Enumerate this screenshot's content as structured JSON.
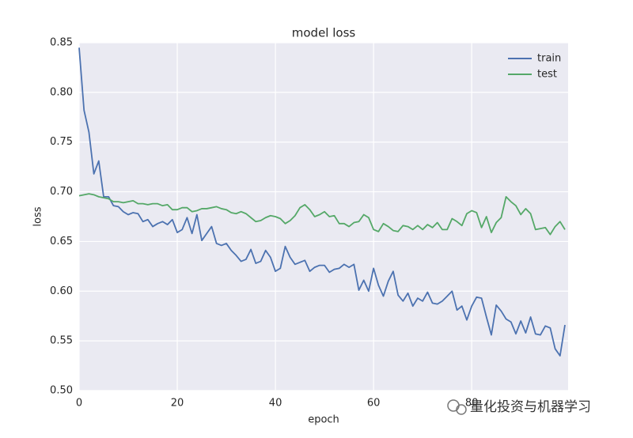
{
  "chart_data": {
    "type": "line",
    "title": "model loss",
    "xlabel": "epoch",
    "ylabel": "loss",
    "x": [
      0,
      1,
      2,
      3,
      4,
      5,
      6,
      7,
      8,
      9,
      10,
      11,
      12,
      13,
      14,
      15,
      16,
      17,
      18,
      19,
      20,
      21,
      22,
      23,
      24,
      25,
      26,
      27,
      28,
      29,
      30,
      31,
      32,
      33,
      34,
      35,
      36,
      37,
      38,
      39,
      40,
      41,
      42,
      43,
      44,
      45,
      46,
      47,
      48,
      49,
      50,
      51,
      52,
      53,
      54,
      55,
      56,
      57,
      58,
      59,
      60,
      61,
      62,
      63,
      64,
      65,
      66,
      67,
      68,
      69,
      70,
      71,
      72,
      73,
      74,
      75,
      76,
      77,
      78,
      79,
      80,
      81,
      82,
      83,
      84,
      85,
      86,
      87,
      88,
      89,
      90,
      91,
      92,
      93,
      94,
      95,
      96,
      97,
      98,
      99
    ],
    "series": [
      {
        "name": "train",
        "color": "#4c72b0",
        "values": [
          0.845,
          0.782,
          0.76,
          0.718,
          0.731,
          0.695,
          0.695,
          0.686,
          0.685,
          0.68,
          0.677,
          0.679,
          0.678,
          0.67,
          0.672,
          0.665,
          0.668,
          0.67,
          0.667,
          0.672,
          0.659,
          0.662,
          0.674,
          0.658,
          0.677,
          0.651,
          0.658,
          0.665,
          0.648,
          0.646,
          0.648,
          0.641,
          0.636,
          0.63,
          0.632,
          0.642,
          0.628,
          0.63,
          0.641,
          0.634,
          0.62,
          0.623,
          0.645,
          0.634,
          0.627,
          0.629,
          0.631,
          0.62,
          0.624,
          0.626,
          0.626,
          0.619,
          0.622,
          0.623,
          0.627,
          0.624,
          0.627,
          0.601,
          0.611,
          0.6,
          0.623,
          0.606,
          0.595,
          0.61,
          0.62,
          0.596,
          0.59,
          0.598,
          0.585,
          0.593,
          0.59,
          0.599,
          0.588,
          0.587,
          0.59,
          0.595,
          0.6,
          0.581,
          0.585,
          0.571,
          0.585,
          0.594,
          0.593,
          0.574,
          0.556,
          0.586,
          0.58,
          0.572,
          0.569,
          0.557,
          0.57,
          0.558,
          0.574,
          0.557,
          0.556,
          0.565,
          0.563,
          0.542,
          0.535,
          0.566
        ]
      },
      {
        "name": "test",
        "color": "#55a868",
        "values": [
          0.696,
          0.697,
          0.698,
          0.697,
          0.695,
          0.694,
          0.693,
          0.69,
          0.69,
          0.689,
          0.69,
          0.691,
          0.688,
          0.688,
          0.687,
          0.688,
          0.688,
          0.686,
          0.687,
          0.682,
          0.682,
          0.684,
          0.684,
          0.68,
          0.681,
          0.683,
          0.683,
          0.684,
          0.685,
          0.683,
          0.682,
          0.679,
          0.678,
          0.68,
          0.678,
          0.674,
          0.67,
          0.671,
          0.674,
          0.676,
          0.675,
          0.673,
          0.668,
          0.671,
          0.676,
          0.684,
          0.687,
          0.682,
          0.675,
          0.677,
          0.68,
          0.675,
          0.676,
          0.668,
          0.668,
          0.665,
          0.669,
          0.67,
          0.677,
          0.674,
          0.662,
          0.66,
          0.668,
          0.665,
          0.661,
          0.66,
          0.666,
          0.665,
          0.662,
          0.666,
          0.662,
          0.667,
          0.664,
          0.669,
          0.662,
          0.662,
          0.673,
          0.67,
          0.666,
          0.678,
          0.681,
          0.679,
          0.664,
          0.675,
          0.659,
          0.669,
          0.674,
          0.695,
          0.69,
          0.686,
          0.677,
          0.683,
          0.678,
          0.662,
          0.663,
          0.664,
          0.657,
          0.665,
          0.67,
          0.662
        ]
      }
    ],
    "xlim": [
      0,
      99
    ],
    "xticks": [
      0,
      20,
      40,
      60,
      80
    ],
    "ylim": [
      0.5,
      0.85
    ],
    "yticks": [
      {
        "value": 0.5,
        "label": "0.50"
      },
      0.55,
      {
        "value": 0.6,
        "label": "0.60"
      },
      0.65,
      {
        "value": 0.7,
        "label": "0.70"
      },
      0.75,
      {
        "value": 0.8,
        "label": "0.80"
      },
      0.85
    ],
    "grid": true,
    "legend": "upper right",
    "background": "#eaeaf2"
  },
  "watermark": "量化投资与机器学习"
}
